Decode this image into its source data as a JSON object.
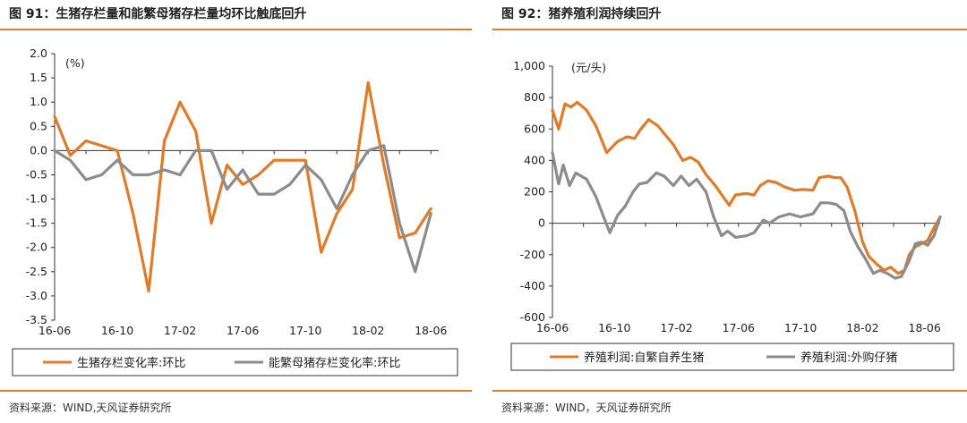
{
  "left": {
    "title": "图 91：生猪存栏量和能繁母猪存栏量均环比触底回升",
    "source": "资料来源：WIND,天风证券研究所",
    "chart_data": {
      "type": "line",
      "unit": "(%)",
      "ylim": [
        -3.5,
        2.0
      ],
      "yticks": [
        "2.0",
        "1.5",
        "1.0",
        "0.5",
        "0.0",
        "-0.5",
        "-1.0",
        "-1.5",
        "-2.0",
        "-2.5",
        "-3.0",
        "-3.5"
      ],
      "ytick_values": [
        2.0,
        1.5,
        1.0,
        0.5,
        0.0,
        -0.5,
        -1.0,
        -1.5,
        -2.0,
        -2.5,
        -3.0,
        -3.5
      ],
      "xlim": [
        0,
        24.5
      ],
      "xticks": [
        "16-06",
        "16-10",
        "17-02",
        "17-06",
        "17-10",
        "18-02",
        "18-06"
      ],
      "xtick_values": [
        0,
        4,
        8,
        12,
        16,
        20,
        24
      ],
      "grid": false,
      "legend_position": "bottom",
      "series": [
        {
          "name": "生猪存栏变化率:环比",
          "color": "#e07b2a",
          "points": [
            [
              0,
              0.7
            ],
            [
              1,
              -0.1
            ],
            [
              2,
              0.2
            ],
            [
              3,
              0.1
            ],
            [
              4,
              0.0
            ],
            [
              5,
              -1.3
            ],
            [
              6,
              -2.9
            ],
            [
              7,
              0.2
            ],
            [
              8,
              1.0
            ],
            [
              9,
              0.4
            ],
            [
              10,
              -1.5
            ],
            [
              11,
              -0.3
            ],
            [
              12,
              -0.7
            ],
            [
              13,
              -0.5
            ],
            [
              14,
              -0.2
            ],
            [
              15,
              -0.2
            ],
            [
              16,
              -0.2
            ],
            [
              17,
              -2.1
            ],
            [
              18,
              -1.3
            ],
            [
              19,
              -0.8
            ],
            [
              20,
              1.4
            ],
            [
              21,
              -0.3
            ],
            [
              22,
              -1.8
            ],
            [
              23,
              -1.7
            ],
            [
              24,
              -1.2
            ]
          ]
        },
        {
          "name": "能繁母猪存栏变化率:环比",
          "color": "#8c8c8c",
          "points": [
            [
              0,
              0.0
            ],
            [
              1,
              -0.2
            ],
            [
              2,
              -0.6
            ],
            [
              3,
              -0.5
            ],
            [
              4,
              -0.2
            ],
            [
              5,
              -0.5
            ],
            [
              6,
              -0.5
            ],
            [
              7,
              -0.4
            ],
            [
              8,
              -0.5
            ],
            [
              9,
              0.0
            ],
            [
              10,
              0.0
            ],
            [
              11,
              -0.8
            ],
            [
              12,
              -0.4
            ],
            [
              13,
              -0.9
            ],
            [
              14,
              -0.9
            ],
            [
              15,
              -0.7
            ],
            [
              16,
              -0.3
            ],
            [
              17,
              -0.6
            ],
            [
              18,
              -1.2
            ],
            [
              19,
              -0.5
            ],
            [
              20,
              0.0
            ],
            [
              21,
              0.1
            ],
            [
              22,
              -1.5
            ],
            [
              23,
              -2.5
            ],
            [
              24,
              -1.3
            ]
          ]
        }
      ]
    }
  },
  "right": {
    "title": "图 92：猪养殖利润持续回升",
    "source": "资料来源：WIND，天风证券研究所",
    "chart_data": {
      "type": "line",
      "unit": "(元/头)",
      "ylim": [
        -600,
        1000
      ],
      "yticks": [
        "1,000",
        "800",
        "600",
        "400",
        "200",
        "0",
        "-200",
        "-400",
        "-600"
      ],
      "ytick_values": [
        1000,
        800,
        600,
        400,
        200,
        0,
        -200,
        -400,
        -600
      ],
      "xlim": [
        0,
        25
      ],
      "xticks": [
        "16-06",
        "16-10",
        "17-02",
        "17-06",
        "17-10",
        "18-02",
        "18-06"
      ],
      "xtick_values": [
        0,
        4,
        8,
        12,
        16,
        20,
        24
      ],
      "grid": false,
      "legend_position": "bottom",
      "series": [
        {
          "name": "养殖利润:自繁自养生猪",
          "color": "#e07b2a",
          "points": [
            [
              0,
              720
            ],
            [
              0.4,
              600
            ],
            [
              0.8,
              760
            ],
            [
              1.2,
              740
            ],
            [
              1.6,
              770
            ],
            [
              2.2,
              720
            ],
            [
              2.8,
              620
            ],
            [
              3.5,
              450
            ],
            [
              4.2,
              520
            ],
            [
              4.8,
              550
            ],
            [
              5.3,
              540
            ],
            [
              5.7,
              600
            ],
            [
              6.2,
              660
            ],
            [
              6.8,
              620
            ],
            [
              7.3,
              560
            ],
            [
              7.8,
              500
            ],
            [
              8.4,
              400
            ],
            [
              8.9,
              420
            ],
            [
              9.4,
              390
            ],
            [
              9.9,
              310
            ],
            [
              10.5,
              240
            ],
            [
              11.0,
              170
            ],
            [
              11.4,
              115
            ],
            [
              11.8,
              180
            ],
            [
              12.5,
              190
            ],
            [
              13.0,
              180
            ],
            [
              13.4,
              240
            ],
            [
              13.9,
              270
            ],
            [
              14.4,
              260
            ],
            [
              15.0,
              230
            ],
            [
              15.6,
              210
            ],
            [
              16.2,
              215
            ],
            [
              16.8,
              210
            ],
            [
              17.2,
              290
            ],
            [
              17.8,
              300
            ],
            [
              18.2,
              290
            ],
            [
              18.6,
              290
            ],
            [
              19.0,
              230
            ],
            [
              19.5,
              80
            ],
            [
              20.0,
              -120
            ],
            [
              20.4,
              -210
            ],
            [
              20.9,
              -260
            ],
            [
              21.4,
              -300
            ],
            [
              21.8,
              -280
            ],
            [
              22.3,
              -320
            ],
            [
              22.7,
              -300
            ],
            [
              23.0,
              -200
            ],
            [
              23.4,
              -150
            ],
            [
              23.8,
              -130
            ],
            [
              24.2,
              -110
            ],
            [
              24.6,
              -30
            ],
            [
              25.0,
              40
            ]
          ]
        },
        {
          "name": "养殖利润:外购仔猪",
          "color": "#8c8c8c",
          "points": [
            [
              0,
              450
            ],
            [
              0.4,
              250
            ],
            [
              0.7,
              370
            ],
            [
              1.1,
              240
            ],
            [
              1.5,
              320
            ],
            [
              2.2,
              280
            ],
            [
              2.8,
              170
            ],
            [
              3.3,
              40
            ],
            [
              3.7,
              -60
            ],
            [
              4.2,
              50
            ],
            [
              4.7,
              110
            ],
            [
              5.2,
              200
            ],
            [
              5.6,
              250
            ],
            [
              6.1,
              260
            ],
            [
              6.7,
              320
            ],
            [
              7.2,
              300
            ],
            [
              7.8,
              240
            ],
            [
              8.3,
              300
            ],
            [
              8.8,
              240
            ],
            [
              9.3,
              280
            ],
            [
              9.9,
              200
            ],
            [
              10.4,
              40
            ],
            [
              10.9,
              -80
            ],
            [
              11.3,
              -50
            ],
            [
              11.8,
              -90
            ],
            [
              12.5,
              -80
            ],
            [
              13.0,
              -60
            ],
            [
              13.6,
              20
            ],
            [
              14.0,
              0
            ],
            [
              14.6,
              40
            ],
            [
              15.3,
              60
            ],
            [
              16.0,
              40
            ],
            [
              16.8,
              60
            ],
            [
              17.3,
              130
            ],
            [
              17.8,
              130
            ],
            [
              18.3,
              120
            ],
            [
              18.8,
              80
            ],
            [
              19.2,
              -50
            ],
            [
              19.7,
              -150
            ],
            [
              20.2,
              -230
            ],
            [
              20.7,
              -320
            ],
            [
              21.1,
              -300
            ],
            [
              21.6,
              -320
            ],
            [
              22.1,
              -350
            ],
            [
              22.5,
              -340
            ],
            [
              23.0,
              -240
            ],
            [
              23.4,
              -130
            ],
            [
              23.8,
              -120
            ],
            [
              24.2,
              -140
            ],
            [
              24.6,
              -80
            ],
            [
              25.0,
              40
            ]
          ]
        }
      ]
    }
  }
}
